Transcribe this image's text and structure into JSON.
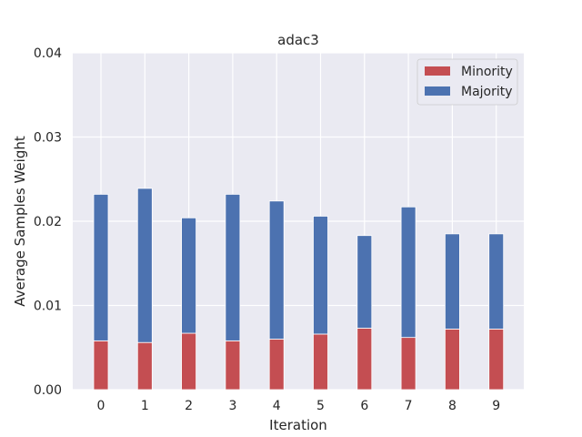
{
  "chart_data": {
    "type": "bar",
    "stacked": true,
    "title": "adac3",
    "xlabel": "Iteration",
    "ylabel": "Average Samples Weight",
    "categories": [
      "0",
      "1",
      "2",
      "3",
      "4",
      "5",
      "6",
      "7",
      "8",
      "9"
    ],
    "series": [
      {
        "name": "Minority",
        "color": "#c44e52",
        "values": [
          0.0058,
          0.0056,
          0.0067,
          0.0058,
          0.006,
          0.0066,
          0.0073,
          0.0062,
          0.0072,
          0.0072
        ]
      },
      {
        "name": "Majority",
        "color": "#4c72b0",
        "values": [
          0.0174,
          0.0183,
          0.0137,
          0.0174,
          0.0164,
          0.014,
          0.011,
          0.0155,
          0.0113,
          0.0113
        ]
      }
    ],
    "ylim": [
      0,
      0.04
    ],
    "yticks": [
      "0.00",
      "0.01",
      "0.02",
      "0.03",
      "0.04"
    ],
    "grid": true,
    "legend_position": "top-right",
    "background": "#eaeaf2"
  }
}
